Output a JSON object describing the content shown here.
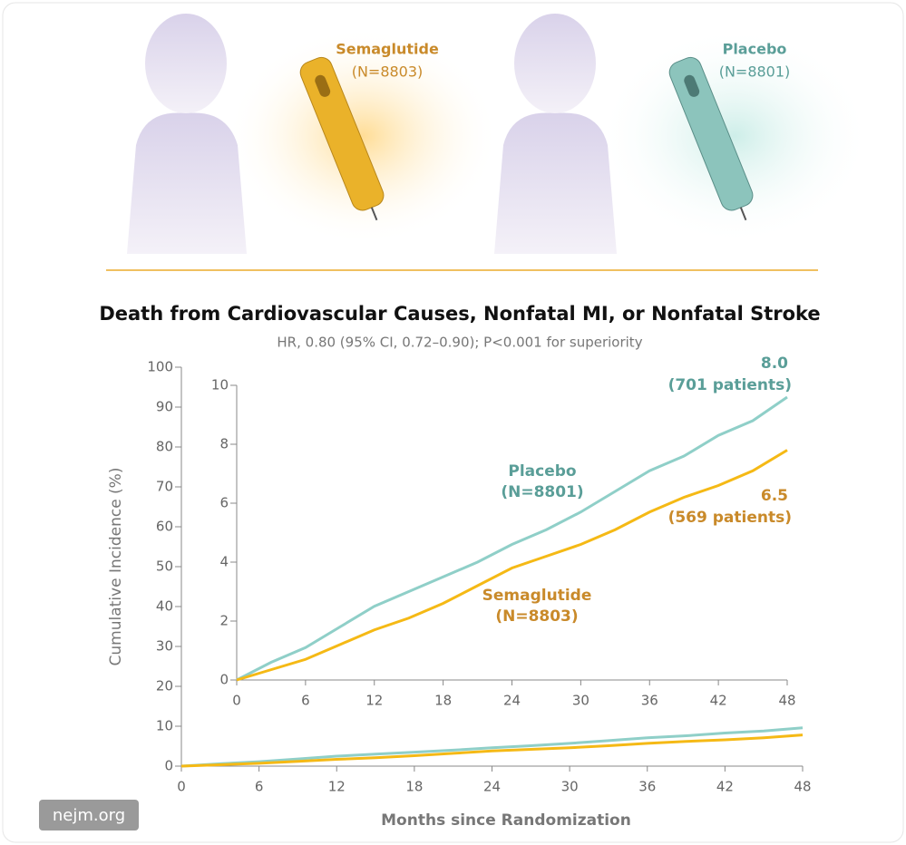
{
  "illustration": {
    "groups": [
      {
        "label": "Semaglutide",
        "n": "(N=8803)",
        "color": "#c98a2a",
        "pen": "#eab22a",
        "glow": "#ffd98a"
      },
      {
        "label": "Placebo",
        "n": "(N=8801)",
        "color": "#5a9e98",
        "pen": "#8cc4bc",
        "glow": "#c8ece6"
      }
    ]
  },
  "watermark": "nejm.org",
  "chart_data": [
    {
      "type": "line",
      "title": "Death from Cardiovascular Causes, Nonfatal MI, or Nonfatal Stroke",
      "subtitle": "HR, 0.80 (95% CI, 0.72–0.90); P<0.001 for superiority",
      "x_label": "Months since Randomization",
      "y_label": "Cumulative Incidence (%)",
      "x": [
        0,
        3,
        6,
        9,
        12,
        15,
        18,
        21,
        24,
        27,
        30,
        33,
        36,
        39,
        42,
        45,
        48
      ],
      "xlim": [
        0,
        48
      ],
      "xticks": [
        0,
        6,
        12,
        18,
        24,
        30,
        36,
        42,
        48
      ],
      "ylim": [
        0,
        100
      ],
      "yticks": [
        0,
        10,
        20,
        30,
        40,
        50,
        60,
        70,
        80,
        90,
        100
      ],
      "series": [
        {
          "color": "#8fcfc8",
          "values": [
            0,
            0.6,
            1.1,
            1.8,
            2.5,
            3.0,
            3.5,
            4.0,
            4.6,
            5.1,
            5.7,
            6.4,
            7.1,
            7.6,
            8.3,
            8.8,
            9.6
          ]
        },
        {
          "color": "#f5b915",
          "values": [
            0,
            0.35,
            0.7,
            1.2,
            1.7,
            2.1,
            2.6,
            3.2,
            3.8,
            4.2,
            4.6,
            5.1,
            5.7,
            6.2,
            6.6,
            7.1,
            7.8
          ]
        }
      ]
    },
    {
      "type": "line",
      "x": [
        0,
        3,
        6,
        9,
        12,
        15,
        18,
        21,
        24,
        27,
        30,
        33,
        36,
        39,
        42,
        45,
        48
      ],
      "xlim": [
        0,
        48
      ],
      "xticks": [
        0,
        6,
        12,
        18,
        24,
        30,
        36,
        42,
        48
      ],
      "ylim": [
        0,
        10
      ],
      "yticks": [
        0,
        2,
        4,
        6,
        8,
        10
      ],
      "series": [
        {
          "name": "Placebo",
          "name_note": "(N=8801)",
          "end_label": "8.0",
          "end_note": "(701 patients)",
          "label_color": "#5a9e98",
          "color": "#8fcfc8",
          "values": [
            0,
            0.6,
            1.1,
            1.8,
            2.5,
            3.0,
            3.5,
            4.0,
            4.6,
            5.1,
            5.7,
            6.4,
            7.1,
            7.6,
            8.3,
            8.8,
            9.6
          ]
        },
        {
          "name": "Semaglutide",
          "name_note": "(N=8803)",
          "end_label": "6.5",
          "end_note": "(569 patients)",
          "label_color": "#c98a2a",
          "color": "#f5b915",
          "values": [
            0,
            0.35,
            0.7,
            1.2,
            1.7,
            2.1,
            2.6,
            3.2,
            3.8,
            4.2,
            4.6,
            5.1,
            5.7,
            6.2,
            6.6,
            7.1,
            7.8
          ]
        }
      ]
    }
  ]
}
